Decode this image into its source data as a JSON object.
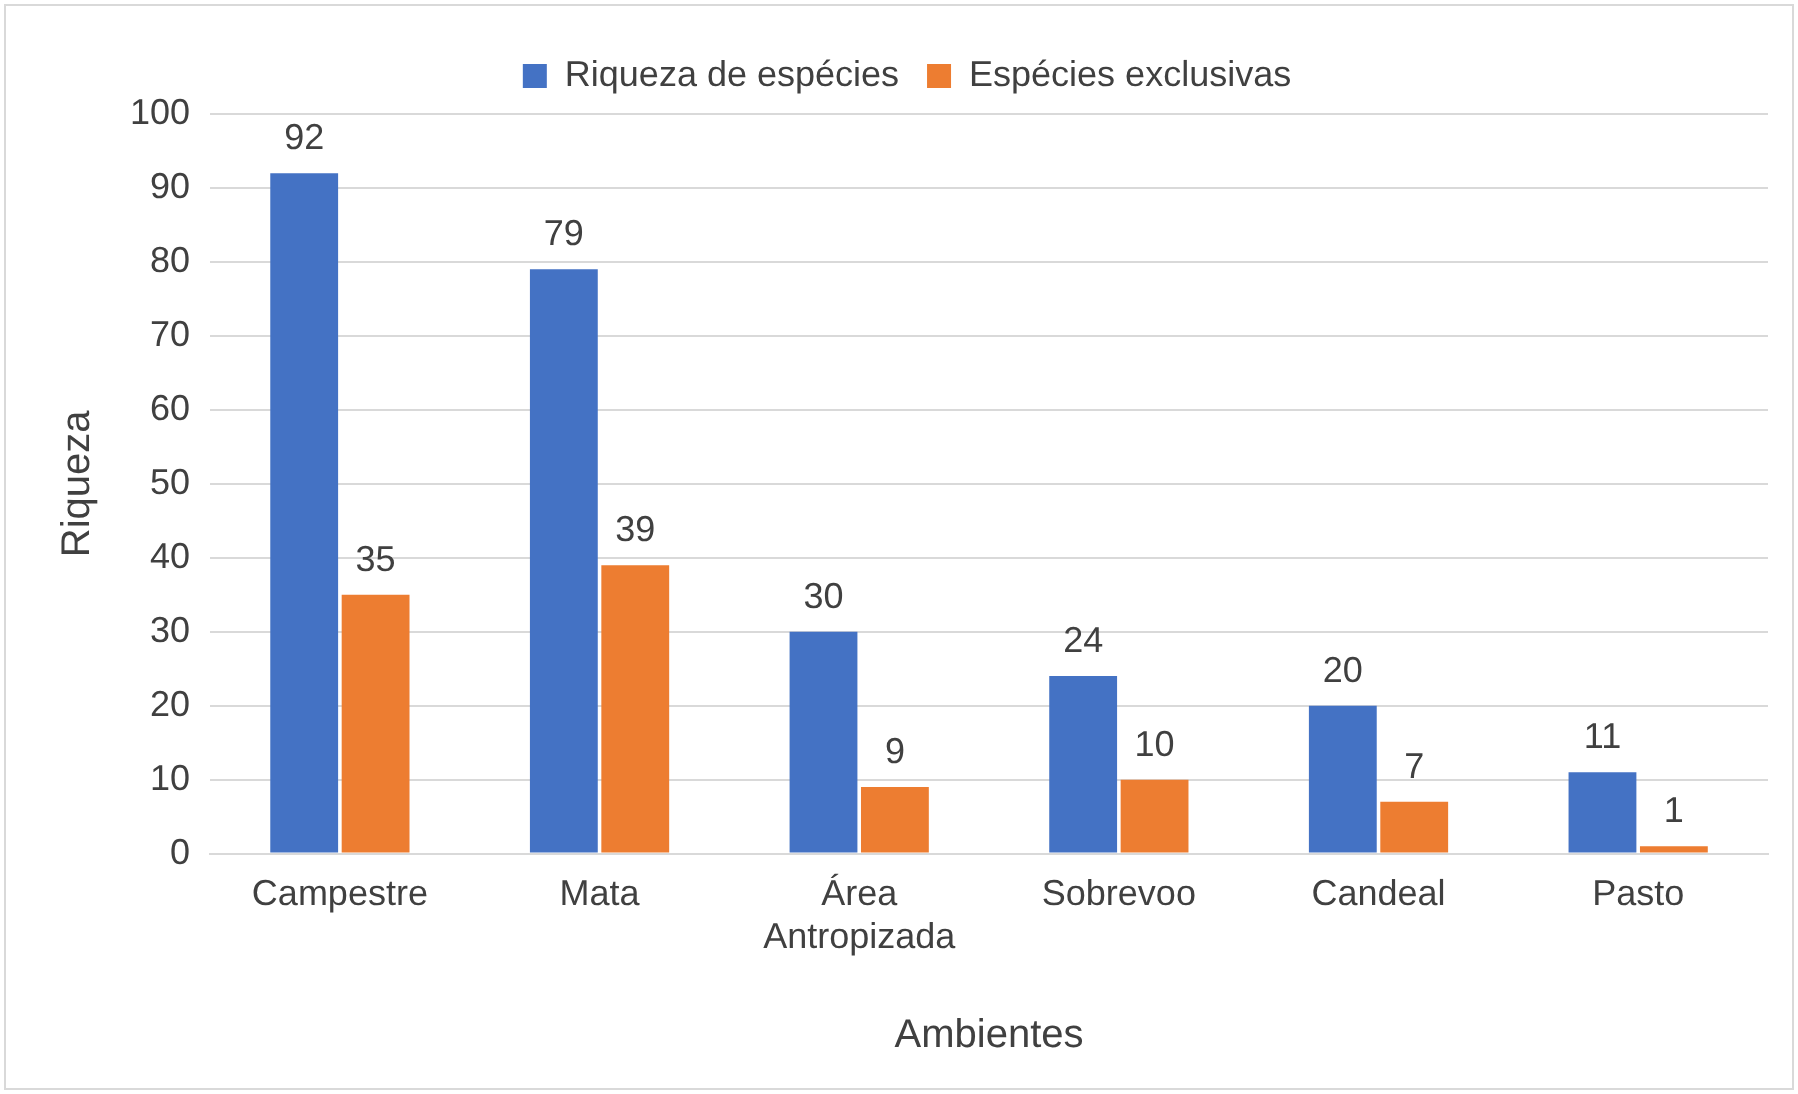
{
  "chart_data": {
    "type": "bar",
    "xlabel": "Ambientes",
    "ylabel": "Riqueza",
    "categories": [
      "Campestre",
      "Mata",
      "Área Antropizada",
      "Sobrevoo",
      "Candeal",
      "Pasto"
    ],
    "series": [
      {
        "name": "Riqueza de espécies",
        "color": "#4472c4",
        "values": [
          92,
          79,
          30,
          24,
          20,
          11
        ]
      },
      {
        "name": "Espécies exclusivas",
        "color": "#ed7d31",
        "values": [
          35,
          39,
          9,
          10,
          7,
          1
        ]
      }
    ],
    "ylim": [
      0,
      100
    ],
    "yticks": [
      0,
      10,
      20,
      30,
      40,
      50,
      60,
      70,
      80,
      90,
      100
    ],
    "grid": "y",
    "legend": "top",
    "data_labels": true
  }
}
